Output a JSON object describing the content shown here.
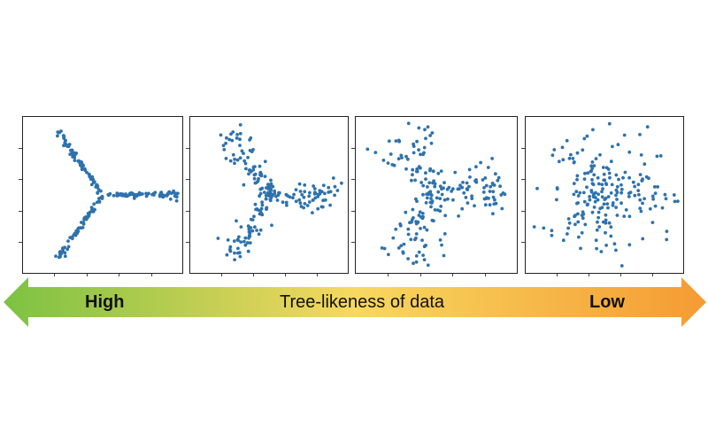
{
  "arrow": {
    "left_label": "High",
    "center_label": "Tree-likeness of data",
    "right_label": "Low",
    "colors": {
      "left": "#7cc242",
      "middle": "#f7d860",
      "right": "#f59b33"
    }
  },
  "point_color": "#2e72ad",
  "chart_data": [
    {
      "type": "scatter",
      "panel": "high-tree-likeness",
      "structure": "three-branch tree with tight spread",
      "xlim": [
        -1.1,
        1.1
      ],
      "ylim": [
        -1.1,
        1.1
      ],
      "center": [
        0,
        0
      ],
      "arms": [
        {
          "direction": "upper-left",
          "end": [
            -0.65,
            0.95
          ]
        },
        {
          "direction": "right",
          "end": [
            1.1,
            0.0
          ]
        },
        {
          "direction": "lower-left",
          "end": [
            -0.65,
            -0.95
          ]
        }
      ],
      "points_per_arm": 70,
      "noise": 0.02,
      "seed": 11
    },
    {
      "type": "scatter",
      "panel": "medium-high-tree-likeness",
      "structure": "three-branch tree with moderate spread",
      "xlim": [
        -1.1,
        1.1
      ],
      "ylim": [
        -1.1,
        1.1
      ],
      "center": [
        0,
        0
      ],
      "arms": [
        {
          "direction": "upper-left",
          "end": [
            -0.6,
            0.95
          ]
        },
        {
          "direction": "right",
          "end": [
            1.05,
            0.0
          ]
        },
        {
          "direction": "lower-left",
          "end": [
            -0.55,
            -0.95
          ]
        }
      ],
      "points_per_arm": 70,
      "noise": 0.09,
      "seed": 23
    },
    {
      "type": "scatter",
      "panel": "medium-low-tree-likeness",
      "structure": "three-branch tree with wide spread",
      "xlim": [
        -1.1,
        1.1
      ],
      "ylim": [
        -1.1,
        1.1
      ],
      "center": [
        0,
        0
      ],
      "arms": [
        {
          "direction": "upper-left",
          "end": [
            -0.5,
            0.95
          ]
        },
        {
          "direction": "right",
          "end": [
            0.95,
            0.05
          ]
        },
        {
          "direction": "lower-left",
          "end": [
            -0.45,
            -0.95
          ]
        }
      ],
      "points_per_arm": 70,
      "noise": 0.17,
      "seed": 37
    },
    {
      "type": "scatter",
      "panel": "low-tree-likeness",
      "structure": "diffuse cloud with faint branches",
      "xlim": [
        -1.1,
        1.1
      ],
      "ylim": [
        -1.1,
        1.1
      ],
      "center": [
        0,
        0
      ],
      "arms": [
        {
          "direction": "upper-left",
          "end": [
            -0.45,
            0.85
          ]
        },
        {
          "direction": "right",
          "end": [
            0.95,
            0.05
          ]
        },
        {
          "direction": "lower-left",
          "end": [
            -0.4,
            -0.85
          ]
        }
      ],
      "points_per_arm": 70,
      "noise": 0.27,
      "seed": 53
    }
  ]
}
